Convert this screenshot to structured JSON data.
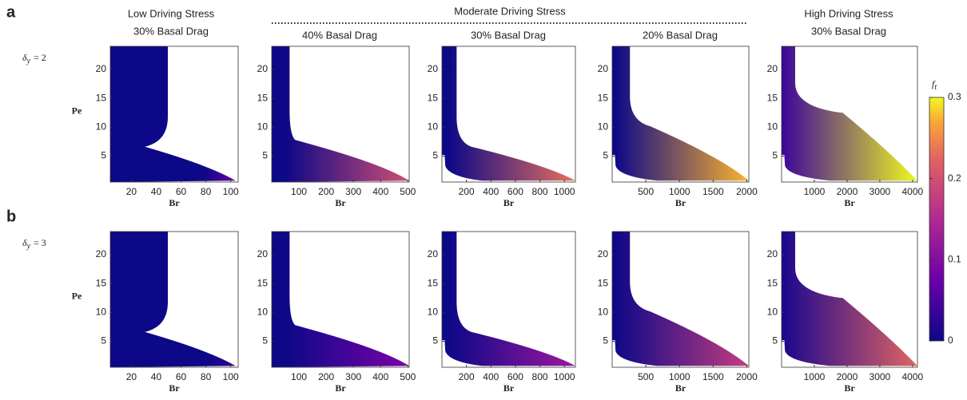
{
  "panel_labels": [
    "a",
    "b"
  ],
  "row_labels": [
    {
      "symbol": "δ",
      "subscript": "y",
      "text": "= 2"
    },
    {
      "symbol": "δ",
      "subscript": "y",
      "text": "= 3"
    }
  ],
  "group_header": "Moderate Driving Stress",
  "column_headers": [
    {
      "title": "Low Driving Stress",
      "subtitle": "30% Basal Drag"
    },
    {
      "subtitle": "40% Basal Drag"
    },
    {
      "subtitle": "30% Basal Drag"
    },
    {
      "subtitle": "20% Basal Drag"
    },
    {
      "title": "High Driving Stress",
      "subtitle": "30% Basal Drag"
    }
  ],
  "colorbar": {
    "symbol": "f",
    "subscript": "t",
    "lim": [
      0,
      0.3
    ],
    "ticks": [
      0,
      0.1,
      0.2,
      0.3
    ]
  },
  "chart_data": [
    {
      "type": "heatmap",
      "xlabel": "Br",
      "ylabel": "Pe",
      "xlim": [
        3,
        106
      ],
      "xticks": [
        20,
        40,
        60,
        80,
        100
      ],
      "ylim": [
        0.5,
        24
      ],
      "yticks": [
        5,
        10,
        15,
        20
      ]
    },
    {
      "type": "heatmap",
      "xlabel": "Br",
      "xlim": [
        0,
        505
      ],
      "xticks": [
        100,
        200,
        300,
        400,
        500
      ],
      "ylim": [
        0.5,
        24
      ],
      "yticks": [
        5,
        10,
        15,
        20
      ]
    },
    {
      "type": "heatmap",
      "xlabel": "Br",
      "xlim": [
        0,
        1090
      ],
      "xticks": [
        200,
        400,
        600,
        800,
        1000
      ],
      "ylim": [
        0.5,
        24
      ],
      "yticks": [
        5,
        10,
        15,
        20
      ]
    },
    {
      "type": "heatmap",
      "xlabel": "Br",
      "xlim": [
        0,
        2030
      ],
      "xticks": [
        500,
        1000,
        1500,
        2000
      ],
      "ylim": [
        0.5,
        24
      ],
      "yticks": [
        5,
        10,
        15,
        20
      ]
    },
    {
      "type": "heatmap",
      "xlabel": "Br",
      "xlim": [
        0,
        4150
      ],
      "xticks": [
        1000,
        2000,
        3000,
        4000
      ],
      "ylim": [
        0.5,
        24
      ],
      "yticks": [
        5,
        10,
        15,
        20
      ]
    },
    {
      "type": "heatmap",
      "xlabel": "Br",
      "ylabel": "Pe",
      "xlim": [
        3,
        106
      ],
      "xticks": [
        20,
        40,
        60,
        80,
        100
      ],
      "ylim": [
        0.5,
        24
      ],
      "yticks": [
        5,
        10,
        15,
        20
      ]
    },
    {
      "type": "heatmap",
      "xlabel": "Br",
      "xlim": [
        0,
        505
      ],
      "xticks": [
        100,
        200,
        300,
        400,
        500
      ],
      "ylim": [
        0.5,
        24
      ],
      "yticks": [
        5,
        10,
        15,
        20
      ]
    },
    {
      "type": "heatmap",
      "xlabel": "Br",
      "xlim": [
        0,
        1090
      ],
      "xticks": [
        200,
        400,
        600,
        800,
        1000
      ],
      "ylim": [
        0.5,
        24
      ],
      "yticks": [
        5,
        10,
        15,
        20
      ]
    },
    {
      "type": "heatmap",
      "xlabel": "Br",
      "xlim": [
        0,
        2030
      ],
      "xticks": [
        500,
        1000,
        1500,
        2000
      ],
      "ylim": [
        0.5,
        24
      ],
      "yticks": [
        5,
        10,
        15,
        20
      ]
    },
    {
      "type": "heatmap",
      "xlabel": "Br",
      "xlim": [
        0,
        4150
      ],
      "xticks": [
        1000,
        2000,
        3000,
        4000
      ],
      "ylim": [
        0.5,
        24
      ],
      "yticks": [
        5,
        10,
        15,
        20
      ]
    }
  ]
}
